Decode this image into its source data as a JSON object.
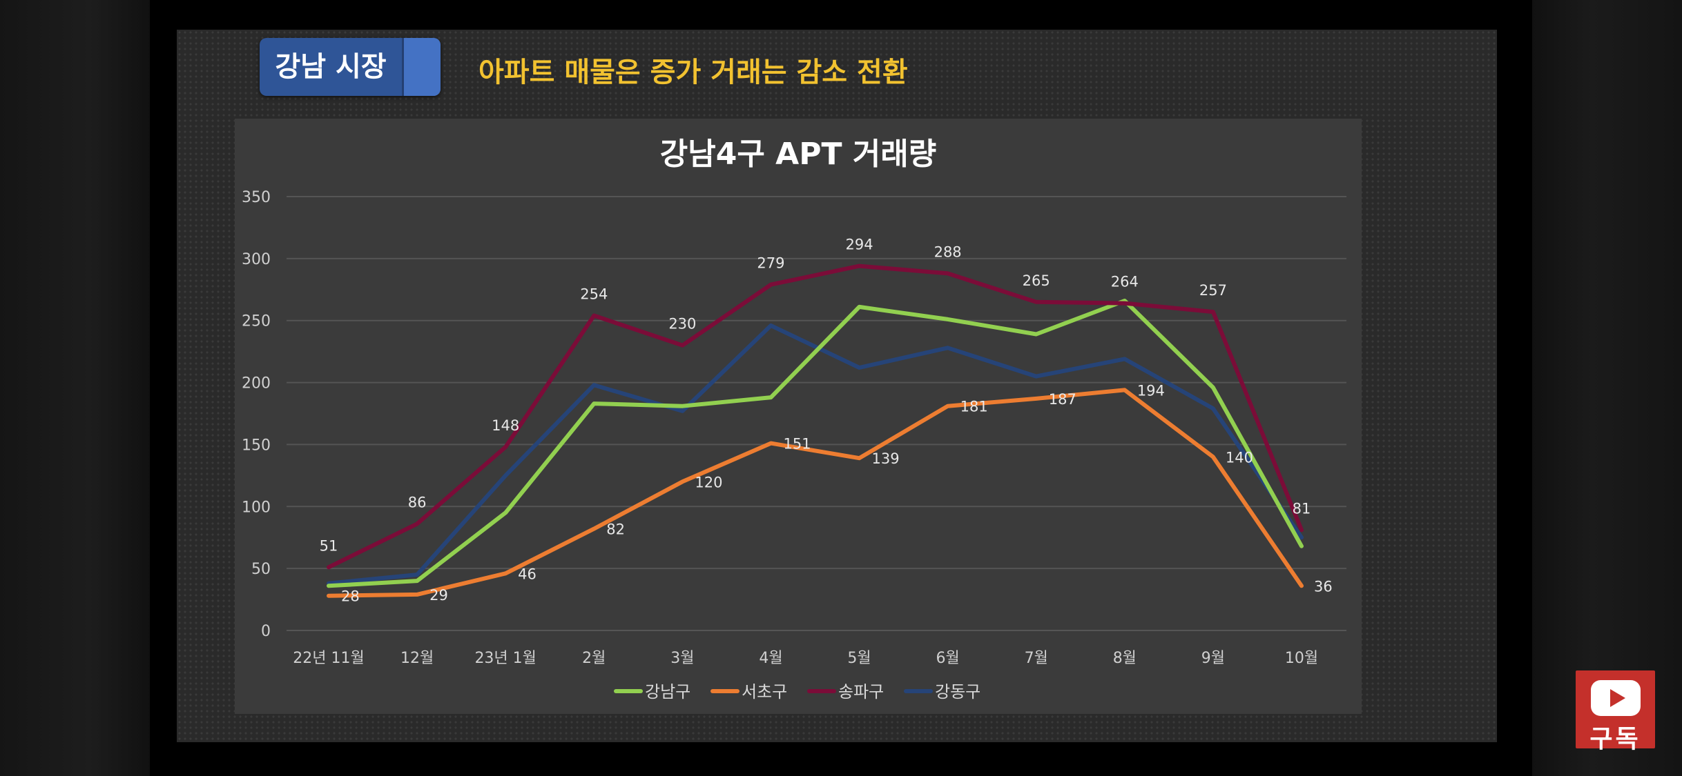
{
  "slide": {
    "tag": "강남 시장",
    "headline": "아파트 매물은 증가 거래는 감소 전환"
  },
  "chart_data": {
    "type": "line",
    "title": "강남4구 APT 거래량",
    "xlabel": "",
    "ylabel": "",
    "ylim": [
      0,
      350
    ],
    "yticks": [
      0,
      50,
      100,
      150,
      200,
      250,
      300,
      350
    ],
    "grid": true,
    "legend_position": "bottom",
    "categories": [
      "22년 11월",
      "12월",
      "23년 1월",
      "2월",
      "3월",
      "4월",
      "5월",
      "6월",
      "7월",
      "8월",
      "9월",
      "10월"
    ],
    "series": [
      {
        "name": "강남구",
        "color": "#92d050",
        "values": [
          36,
          40,
          95,
          183,
          181,
          188,
          261,
          251,
          239,
          266,
          196,
          68
        ],
        "labels": [
          null,
          null,
          null,
          null,
          null,
          null,
          null,
          null,
          null,
          null,
          null,
          null
        ]
      },
      {
        "name": "서초구",
        "color": "#ed7d31",
        "values": [
          28,
          29,
          46,
          82,
          120,
          151,
          139,
          181,
          187,
          194,
          140,
          36
        ],
        "labels": [
          28,
          29,
          46,
          82,
          120,
          151,
          139,
          181,
          187,
          194,
          140,
          36
        ]
      },
      {
        "name": "송파구",
        "color": "#7b0c38",
        "values": [
          51,
          86,
          148,
          254,
          230,
          279,
          294,
          288,
          265,
          264,
          257,
          81
        ],
        "labels": [
          51,
          86,
          148,
          254,
          230,
          279,
          294,
          288,
          265,
          264,
          257,
          81
        ]
      },
      {
        "name": "강동구",
        "color": "#264478",
        "values": [
          38,
          45,
          125,
          198,
          177,
          246,
          212,
          228,
          205,
          219,
          179,
          75
        ],
        "labels": [
          null,
          null,
          null,
          null,
          null,
          null,
          null,
          null,
          null,
          null,
          null,
          null
        ]
      }
    ]
  },
  "subscribe": {
    "label": "구독",
    "icon": "youtube-play-icon"
  }
}
